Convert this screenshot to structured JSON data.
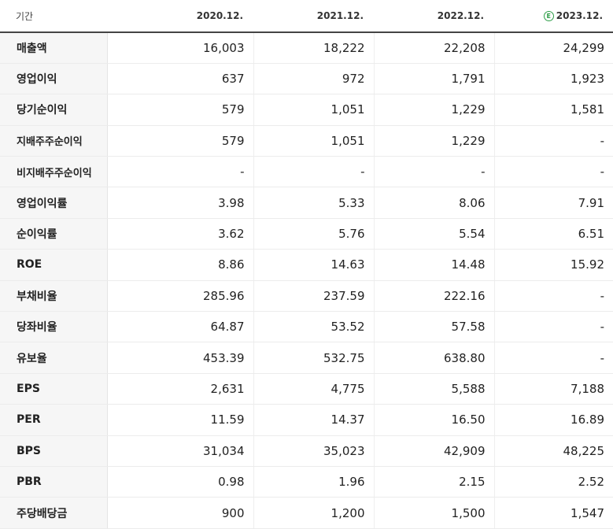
{
  "table": {
    "header": {
      "label": "기간",
      "periods": [
        "2020.12.",
        "2021.12.",
        "2022.12.",
        "2023.12."
      ],
      "estimate_icon": {
        "glyph": "E",
        "icon": "estimate-icon",
        "color": "#2e9e48"
      }
    },
    "rows": [
      {
        "label": "매출액",
        "values": [
          "16,003",
          "18,222",
          "22,208",
          "24,299"
        ]
      },
      {
        "label": "영업이익",
        "values": [
          "637",
          "972",
          "1,791",
          "1,923"
        ]
      },
      {
        "label": "당기순이익",
        "values": [
          "579",
          "1,051",
          "1,229",
          "1,581"
        ]
      },
      {
        "label": "지배주주순이익",
        "values": [
          "579",
          "1,051",
          "1,229",
          "-"
        ]
      },
      {
        "label": "비지배주주순이익",
        "values": [
          "-",
          "-",
          "-",
          "-"
        ]
      },
      {
        "label": "영업이익률",
        "values": [
          "3.98",
          "5.33",
          "8.06",
          "7.91"
        ]
      },
      {
        "label": "순이익률",
        "values": [
          "3.62",
          "5.76",
          "5.54",
          "6.51"
        ]
      },
      {
        "label": "ROE",
        "values": [
          "8.86",
          "14.63",
          "14.48",
          "15.92"
        ]
      },
      {
        "label": "부채비율",
        "values": [
          "285.96",
          "237.59",
          "222.16",
          "-"
        ]
      },
      {
        "label": "당좌비율",
        "values": [
          "64.87",
          "53.52",
          "57.58",
          "-"
        ]
      },
      {
        "label": "유보율",
        "values": [
          "453.39",
          "532.75",
          "638.80",
          "-"
        ]
      },
      {
        "label": "EPS",
        "values": [
          "2,631",
          "4,775",
          "5,588",
          "7,188"
        ]
      },
      {
        "label": "PER",
        "values": [
          "11.59",
          "14.37",
          "16.50",
          "16.89"
        ]
      },
      {
        "label": "BPS",
        "values": [
          "31,034",
          "35,023",
          "42,909",
          "48,225"
        ]
      },
      {
        "label": "PBR",
        "values": [
          "0.98",
          "1.96",
          "2.15",
          "2.52"
        ]
      },
      {
        "label": "주당배당금",
        "values": [
          "900",
          "1,200",
          "1,500",
          "1,547"
        ]
      }
    ]
  }
}
